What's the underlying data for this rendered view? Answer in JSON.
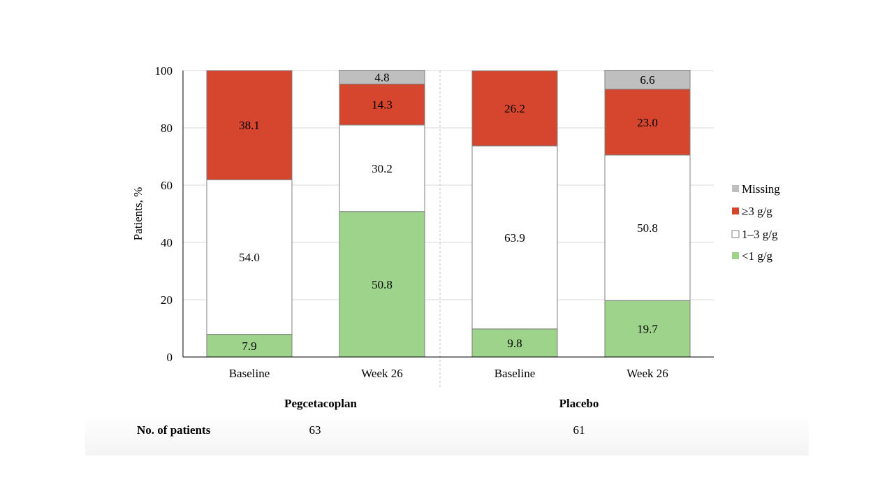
{
  "colors": {
    "missing": "#BFBFBF",
    "ge3": "#D6462E",
    "mid": "#FFFFFF",
    "lt1": "#9DD38A",
    "grid": "#D9D9D9",
    "divider": "#BFBFBF"
  },
  "footer": {
    "patients_label": "No. of patients",
    "counts": [
      "63",
      "61"
    ]
  },
  "chart_data": {
    "type": "bar",
    "stacked": true,
    "ylabel": "Patients, %",
    "ylim": [
      0,
      100
    ],
    "yticks": [
      0,
      20,
      40,
      60,
      80,
      100
    ],
    "grid": true,
    "legend_position": "right",
    "groups": [
      "Pegcetacoplan",
      "Placebo"
    ],
    "categories": [
      "Baseline",
      "Week 26",
      "Baseline",
      "Week 26"
    ],
    "category_group": [
      0,
      0,
      1,
      1
    ],
    "series": [
      {
        "name": "<1 g/g",
        "key": "lt1",
        "values": [
          7.9,
          50.8,
          9.8,
          19.7
        ],
        "labels": [
          "7.9",
          "50.8",
          "9.8",
          "19.7"
        ]
      },
      {
        "name": "1–3 g/g",
        "key": "mid",
        "values": [
          54.0,
          30.2,
          63.9,
          50.8
        ],
        "labels": [
          "54.0",
          "30.2",
          "63.9",
          "50.8"
        ]
      },
      {
        "name": "≥3 g/g",
        "key": "ge3",
        "values": [
          38.1,
          14.3,
          26.2,
          23.0
        ],
        "labels": [
          "38.1",
          "14.3",
          "26.2",
          "23.0"
        ]
      },
      {
        "name": "Missing",
        "key": "missing",
        "values": [
          0,
          4.8,
          0,
          6.6
        ],
        "labels": [
          "",
          "4.8",
          "",
          "6.6"
        ]
      }
    ],
    "legend_order": [
      "Missing",
      "≥3 g/g",
      "1–3 g/g",
      "<1 g/g"
    ]
  }
}
